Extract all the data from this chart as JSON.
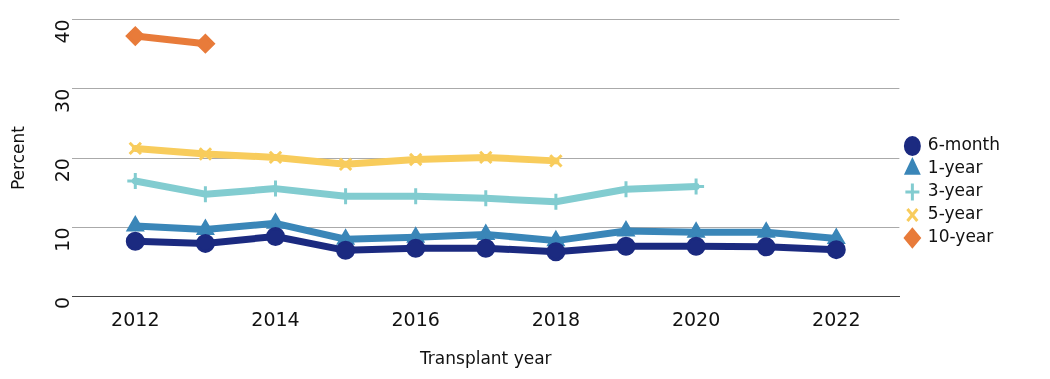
{
  "chart_data": {
    "type": "line",
    "xlabel": "Transplant year",
    "ylabel": "Percent",
    "x": [
      2012,
      2013,
      2014,
      2015,
      2016,
      2017,
      2018,
      2019,
      2020,
      2021,
      2022
    ],
    "xlim": [
      2011.1,
      2022.9
    ],
    "xticks": [
      2012,
      2014,
      2016,
      2018,
      2020,
      2022
    ],
    "ylim": [
      0,
      40
    ],
    "yticks": [
      0,
      10,
      20,
      30,
      40
    ],
    "grid": "y",
    "legend": "right",
    "line_style": "solid",
    "series": [
      {
        "name": "6-month",
        "color": "#1b2a80",
        "marker": "circle",
        "values": [
          8.0,
          7.7,
          8.7,
          6.7,
          7.0,
          7.0,
          6.5,
          7.3,
          7.3,
          7.2,
          6.8
        ]
      },
      {
        "name": "1-year",
        "color": "#3a86b8",
        "marker": "triangle",
        "values": [
          10.2,
          9.7,
          10.6,
          8.3,
          8.6,
          9.0,
          8.1,
          9.5,
          9.3,
          9.3,
          8.4
        ]
      },
      {
        "name": "3-year",
        "color": "#82ccd0",
        "marker": "cross",
        "values": [
          16.7,
          14.8,
          15.6,
          14.5,
          14.5,
          14.2,
          13.7,
          15.5,
          15.9,
          null,
          null
        ]
      },
      {
        "name": "5-year",
        "color": "#f8cc5c",
        "marker": "x",
        "values": [
          21.4,
          20.6,
          20.1,
          19.1,
          19.8,
          20.1,
          19.6,
          null,
          null,
          null,
          null
        ]
      },
      {
        "name": "10-year",
        "color": "#e87b3a",
        "marker": "diamond",
        "values": [
          37.6,
          36.5,
          null,
          null,
          null,
          null,
          null,
          null,
          null,
          null,
          null
        ]
      }
    ]
  }
}
